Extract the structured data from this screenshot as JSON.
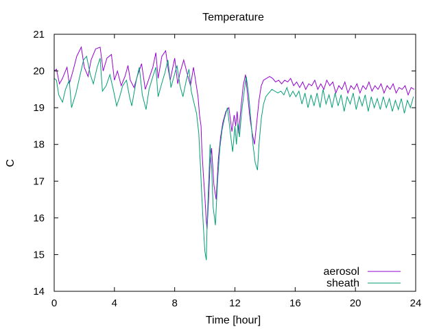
{
  "chart_data": {
    "type": "line",
    "title": "Temperature",
    "xlabel": "Time [hour]",
    "ylabel": "C",
    "xlim": [
      0,
      24
    ],
    "ylim": [
      14,
      21
    ],
    "xticks": [
      0,
      4,
      8,
      12,
      16,
      20,
      24
    ],
    "yticks": [
      14,
      15,
      16,
      17,
      18,
      19,
      20,
      21
    ],
    "grid": false,
    "legend_position": "bottom-right",
    "series": [
      {
        "name": "aerosol",
        "color": "#9400d3",
        "x": [
          0,
          0.15,
          0.35,
          0.55,
          0.85,
          1.0,
          1.25,
          1.5,
          1.8,
          2.0,
          2.25,
          2.45,
          2.75,
          3.05,
          3.25,
          3.5,
          3.8,
          4.0,
          4.2,
          4.45,
          4.7,
          4.9,
          5.05,
          5.3,
          5.55,
          5.8,
          6.05,
          6.3,
          6.55,
          6.75,
          6.9,
          7.15,
          7.4,
          7.55,
          7.7,
          8.0,
          8.2,
          8.35,
          8.6,
          8.85,
          9.05,
          9.25,
          9.4,
          9.55,
          9.65,
          9.75,
          9.8,
          9.9,
          10.0,
          10.1,
          10.15,
          10.25,
          10.35,
          10.45,
          10.6,
          10.75,
          10.9,
          11.05,
          11.2,
          11.4,
          11.6,
          11.8,
          11.95,
          12.05,
          12.15,
          12.25,
          12.4,
          12.55,
          12.7,
          12.85,
          13.0,
          13.15,
          13.3,
          13.45,
          13.6,
          13.75,
          13.9,
          14.1,
          14.3,
          14.5,
          14.7,
          14.9,
          15.1,
          15.3,
          15.5,
          15.7,
          15.9,
          16.1,
          16.3,
          16.5,
          16.7,
          16.9,
          17.1,
          17.3,
          17.5,
          17.7,
          17.9,
          18.1,
          18.3,
          18.5,
          18.7,
          18.9,
          19.1,
          19.3,
          19.5,
          19.7,
          19.9,
          20.1,
          20.3,
          20.5,
          20.7,
          20.9,
          21.1,
          21.3,
          21.5,
          21.7,
          21.9,
          22.1,
          22.3,
          22.5,
          22.7,
          22.9,
          23.1,
          23.3,
          23.5,
          23.7,
          23.9
        ],
        "y": [
          20.0,
          20.05,
          19.65,
          19.8,
          20.1,
          19.65,
          20.0,
          20.4,
          20.65,
          20.1,
          19.85,
          20.3,
          20.6,
          20.65,
          20.0,
          20.35,
          20.45,
          19.75,
          20.0,
          19.6,
          19.85,
          20.15,
          19.75,
          19.55,
          19.9,
          20.2,
          19.5,
          19.8,
          20.1,
          20.5,
          19.8,
          20.4,
          20.55,
          20.1,
          19.75,
          20.35,
          19.65,
          19.95,
          20.3,
          19.9,
          19.6,
          20.1,
          19.7,
          19.3,
          18.8,
          18.5,
          17.9,
          17.2,
          16.6,
          15.9,
          15.7,
          16.5,
          17.5,
          17.9,
          16.9,
          16.5,
          17.6,
          18.2,
          18.6,
          18.9,
          19.0,
          18.35,
          18.8,
          18.5,
          18.9,
          18.3,
          19.0,
          19.6,
          19.9,
          19.3,
          18.7,
          18.3,
          18.0,
          18.6,
          19.2,
          19.6,
          19.75,
          19.8,
          19.85,
          19.8,
          19.7,
          19.75,
          19.65,
          19.75,
          19.7,
          19.8,
          19.6,
          19.7,
          19.55,
          19.7,
          19.5,
          19.65,
          19.6,
          19.75,
          19.5,
          19.65,
          19.5,
          19.75,
          19.6,
          19.7,
          19.4,
          19.6,
          19.5,
          19.7,
          19.4,
          19.6,
          19.5,
          19.65,
          19.4,
          19.6,
          19.5,
          19.7,
          19.45,
          19.6,
          19.5,
          19.65,
          19.4,
          19.6,
          19.5,
          19.65,
          19.4,
          19.55,
          19.5,
          19.6,
          19.35,
          19.55,
          19.5
        ]
      },
      {
        "name": "sheath",
        "color": "#009e73",
        "x": [
          0,
          0.15,
          0.3,
          0.55,
          0.75,
          1.0,
          1.15,
          1.45,
          1.7,
          1.95,
          2.15,
          2.4,
          2.6,
          2.85,
          3.05,
          3.2,
          3.45,
          3.7,
          3.95,
          4.15,
          4.35,
          4.55,
          4.8,
          5.0,
          5.15,
          5.45,
          5.65,
          5.85,
          6.1,
          6.3,
          6.55,
          6.75,
          6.9,
          7.1,
          7.35,
          7.55,
          7.75,
          7.95,
          8.15,
          8.35,
          8.55,
          8.75,
          8.95,
          9.1,
          9.3,
          9.45,
          9.6,
          9.7,
          9.8,
          9.9,
          10.0,
          10.1,
          10.15,
          10.25,
          10.35,
          10.45,
          10.55,
          10.7,
          10.85,
          11.0,
          11.15,
          11.3,
          11.5,
          11.7,
          11.85,
          12.0,
          12.1,
          12.2,
          12.3,
          12.45,
          12.6,
          12.75,
          12.9,
          13.05,
          13.2,
          13.35,
          13.5,
          13.6,
          13.75,
          13.9,
          14.05,
          14.25,
          14.45,
          14.65,
          14.85,
          15.05,
          15.25,
          15.45,
          15.65,
          15.85,
          16.05,
          16.25,
          16.45,
          16.65,
          16.85,
          17.05,
          17.25,
          17.45,
          17.65,
          17.85,
          18.05,
          18.25,
          18.45,
          18.65,
          18.85,
          19.05,
          19.25,
          19.45,
          19.65,
          19.85,
          20.05,
          20.25,
          20.45,
          20.65,
          20.85,
          21.05,
          21.25,
          21.45,
          21.65,
          21.85,
          22.05,
          22.25,
          22.45,
          22.65,
          22.85,
          23.05,
          23.25,
          23.45,
          23.65,
          23.85
        ],
        "y": [
          19.8,
          19.75,
          19.35,
          19.15,
          19.5,
          19.75,
          19.0,
          19.4,
          19.85,
          20.3,
          20.4,
          19.9,
          19.65,
          20.1,
          20.35,
          19.45,
          19.6,
          19.9,
          19.45,
          19.05,
          19.3,
          19.6,
          19.75,
          19.3,
          19.05,
          19.75,
          20.1,
          19.35,
          18.95,
          19.5,
          19.85,
          20.1,
          19.3,
          19.6,
          19.95,
          20.3,
          19.55,
          19.85,
          20.15,
          19.6,
          19.3,
          19.7,
          20.05,
          19.45,
          19.1,
          18.85,
          18.3,
          17.5,
          16.6,
          15.8,
          15.1,
          14.85,
          15.8,
          16.9,
          18.0,
          17.4,
          16.3,
          15.8,
          17.0,
          17.9,
          18.4,
          18.7,
          19.0,
          18.3,
          17.8,
          18.5,
          18.0,
          18.6,
          18.2,
          18.9,
          19.4,
          19.85,
          19.4,
          18.7,
          18.0,
          17.5,
          17.3,
          18.0,
          18.7,
          19.1,
          19.3,
          19.4,
          19.5,
          19.45,
          19.4,
          19.45,
          19.35,
          19.55,
          19.3,
          19.45,
          19.3,
          19.45,
          19.1,
          19.4,
          19.0,
          19.35,
          19.05,
          19.4,
          19.0,
          19.5,
          19.1,
          19.35,
          19.0,
          19.4,
          19.05,
          19.35,
          18.9,
          19.3,
          19.1,
          19.4,
          18.95,
          19.3,
          19.05,
          19.35,
          18.9,
          19.3,
          19.0,
          19.25,
          18.95,
          19.3,
          19.0,
          19.25,
          18.9,
          19.2,
          18.95,
          19.25,
          18.85,
          19.2,
          19.0,
          19.3
        ]
      }
    ]
  }
}
